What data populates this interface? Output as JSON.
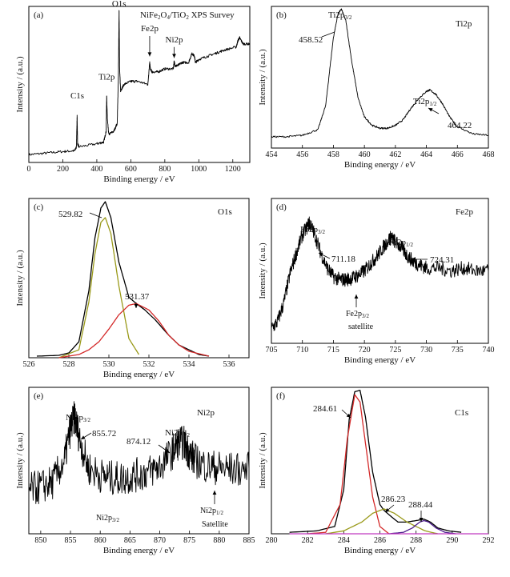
{
  "chart_data": [
    {
      "panel": "(a)",
      "title": "NiFe2O4/TiO2 XPS Survey",
      "title_parts": [
        "NiFe",
        "2",
        "O",
        "4",
        "/TiO",
        "2",
        " XPS Survey"
      ],
      "type": "line",
      "xlabel": "Binding energy / eV",
      "ylabel": "Intensity / (a.u.)",
      "xlim": [
        0,
        1300
      ],
      "ylim": [
        0,
        1
      ],
      "xticks": [
        0,
        200,
        400,
        600,
        800,
        1000,
        1200
      ],
      "series": [
        {
          "color": "#000000",
          "noise": 0.008,
          "x": [
            0,
            100,
            200,
            270,
            280,
            284,
            287,
            295,
            400,
            440,
            455,
            458,
            462,
            470,
            500,
            520,
            527,
            531,
            534,
            540,
            560,
            600,
            640,
            700,
            705,
            711,
            715,
            725,
            760,
            800,
            850,
            855,
            860,
            875,
            900,
            940,
            960,
            975,
            980,
            1000,
            1050,
            1100,
            1150,
            1220,
            1230,
            1240,
            1260,
            1300
          ],
          "y": [
            0.05,
            0.06,
            0.07,
            0.075,
            0.1,
            0.3,
            0.12,
            0.1,
            0.12,
            0.13,
            0.2,
            0.43,
            0.28,
            0.18,
            0.2,
            0.25,
            0.55,
            0.98,
            0.6,
            0.46,
            0.5,
            0.52,
            0.52,
            0.5,
            0.56,
            0.64,
            0.6,
            0.58,
            0.58,
            0.6,
            0.6,
            0.65,
            0.62,
            0.62,
            0.64,
            0.64,
            0.7,
            0.68,
            0.64,
            0.66,
            0.68,
            0.7,
            0.72,
            0.74,
            0.78,
            0.8,
            0.76,
            0.76
          ]
        }
      ],
      "labels": [
        {
          "text": "C1s",
          "x": 285,
          "y": 0.41
        },
        {
          "text": "Ti2p",
          "x": 458,
          "y": 0.53
        },
        {
          "text": "O1s",
          "x": 531,
          "y": 1.0
        },
        {
          "text": "Fe2p",
          "x": 711,
          "y": 0.84
        },
        {
          "text": "Ni2p",
          "x": 855,
          "y": 0.77
        }
      ]
    },
    {
      "panel": "(b)",
      "title": "Ti2p",
      "type": "line",
      "xlabel": "Binding energy / eV",
      "ylabel": "Intensity / (a.u.)",
      "xlim": [
        454,
        468
      ],
      "ylim": [
        0,
        1
      ],
      "xticks": [
        454,
        456,
        458,
        460,
        462,
        464,
        466,
        468
      ],
      "series": [
        {
          "color": "#000000",
          "noise": 0.006,
          "x": [
            454,
            455,
            456,
            457,
            457.5,
            458,
            458.3,
            458.52,
            458.8,
            459.2,
            459.6,
            460,
            460.5,
            461,
            461.5,
            462,
            462.5,
            463,
            463.5,
            464,
            464.22,
            464.6,
            465,
            465.5,
            466,
            467,
            468
          ],
          "y": [
            0.08,
            0.08,
            0.09,
            0.13,
            0.3,
            0.78,
            0.95,
            0.98,
            0.9,
            0.6,
            0.35,
            0.22,
            0.16,
            0.14,
            0.14,
            0.16,
            0.2,
            0.28,
            0.35,
            0.4,
            0.41,
            0.38,
            0.32,
            0.22,
            0.15,
            0.1,
            0.09
          ]
        }
      ],
      "peaks": [
        {
          "name": "Ti2p",
          "sub": "3/2",
          "value": "458.52"
        },
        {
          "name": "Ti2p",
          "sub": "1/2",
          "value": "464.22"
        }
      ]
    },
    {
      "panel": "(c)",
      "title": "O1s",
      "type": "line",
      "xlabel": "Binding energy /  eV",
      "ylabel": "Intensity / (a.u.)",
      "xlim": [
        526,
        537
      ],
      "ylim": [
        0,
        1
      ],
      "xticks": [
        526,
        528,
        530,
        532,
        534,
        536
      ],
      "series": [
        {
          "color": "#000000",
          "x": [
            526.4,
            527.5,
            528,
            528.5,
            529,
            529.3,
            529.6,
            529.82,
            530.1,
            530.5,
            531,
            531.37,
            531.8,
            532.3,
            533,
            533.5,
            534,
            534.5,
            535
          ],
          "y": [
            0.01,
            0.015,
            0.03,
            0.1,
            0.42,
            0.75,
            0.94,
            0.98,
            0.88,
            0.6,
            0.38,
            0.34,
            0.3,
            0.24,
            0.14,
            0.08,
            0.05,
            0.02,
            0.01
          ]
        },
        {
          "color": "#9a9a1a",
          "x": [
            527.5,
            528.5,
            529,
            529.3,
            529.6,
            529.82,
            530.1,
            530.5,
            531,
            531.5
          ],
          "y": [
            0.0,
            0.05,
            0.35,
            0.65,
            0.85,
            0.88,
            0.78,
            0.45,
            0.12,
            0.02
          ]
        },
        {
          "color": "#d42a2a",
          "x": [
            527.5,
            528.5,
            529,
            529.5,
            530,
            530.5,
            531,
            531.37,
            532,
            532.5,
            533,
            533.5,
            534,
            535
          ],
          "y": [
            0.0,
            0.02,
            0.05,
            0.1,
            0.18,
            0.27,
            0.33,
            0.34,
            0.3,
            0.23,
            0.14,
            0.08,
            0.04,
            0.01
          ]
        }
      ],
      "peaks": [
        {
          "value": "529.82"
        },
        {
          "value": "531.37"
        }
      ]
    },
    {
      "panel": "(d)",
      "title": "Fe2p",
      "type": "line",
      "xlabel": "Binding energy / eV",
      "ylabel": "Intensity / (a.u.)",
      "xlim": [
        705,
        740
      ],
      "ylim": [
        0,
        1
      ],
      "xticks": [
        705,
        710,
        715,
        720,
        725,
        730,
        735,
        740
      ],
      "series": [
        {
          "color": "#000000",
          "noise": 0.05,
          "x": [
            705,
            706,
            707,
            708,
            709,
            710,
            711,
            711.18,
            712,
            713,
            714,
            715,
            716,
            717,
            718,
            719,
            720,
            721,
            722,
            723,
            724,
            724.31,
            725,
            726,
            727,
            728,
            729,
            730,
            732,
            734,
            736,
            738,
            740
          ],
          "y": [
            0.1,
            0.15,
            0.28,
            0.48,
            0.62,
            0.75,
            0.82,
            0.83,
            0.75,
            0.62,
            0.52,
            0.46,
            0.44,
            0.44,
            0.45,
            0.47,
            0.5,
            0.55,
            0.6,
            0.66,
            0.72,
            0.73,
            0.7,
            0.66,
            0.6,
            0.56,
            0.54,
            0.52,
            0.52,
            0.5,
            0.52,
            0.5,
            0.5
          ]
        }
      ],
      "peaks": [
        {
          "name": "Fe2p",
          "sub": "3/2",
          "value": "711.18"
        },
        {
          "name": "Fe2p",
          "sub": "1/2",
          "value": "724.31"
        },
        {
          "name": "Fe2p",
          "sub": "3/2",
          "note": "satellite"
        }
      ]
    },
    {
      "panel": "(e)",
      "title": "Ni2p",
      "type": "line",
      "xlabel": "Binding energy / eV",
      "ylabel": "Intensity / (a.u.)",
      "xlim": [
        848,
        885
      ],
      "ylim": [
        0,
        1
      ],
      "xticks": [
        850,
        855,
        860,
        865,
        870,
        875,
        880,
        885
      ],
      "series": [
        {
          "color": "#000000",
          "noise": 0.12,
          "x": [
            848,
            850,
            852,
            854,
            855,
            855.72,
            856.5,
            858,
            860,
            862,
            864,
            866,
            868,
            870,
            872,
            873,
            874.12,
            875,
            876,
            878,
            880,
            882,
            885
          ],
          "y": [
            0.3,
            0.32,
            0.35,
            0.5,
            0.72,
            0.8,
            0.65,
            0.45,
            0.4,
            0.38,
            0.38,
            0.4,
            0.42,
            0.46,
            0.55,
            0.62,
            0.62,
            0.55,
            0.5,
            0.46,
            0.45,
            0.44,
            0.44
          ]
        }
      ],
      "peaks": [
        {
          "name": "Ni2p",
          "sub": "3/2",
          "value": "855.72"
        },
        {
          "name": "Ni2p",
          "sub": "1/2",
          "value": "874.12"
        },
        {
          "name": "Ni2p",
          "sub": "3/2"
        },
        {
          "name": "Ni2p",
          "sub": "1/2",
          "note": "Satellite"
        }
      ]
    },
    {
      "panel": "(f)",
      "title": "C1s",
      "type": "line",
      "xlabel": "Binding energy / eV",
      "ylabel": "Intensity / (a.u.)",
      "xlim": [
        280,
        292
      ],
      "ylim": [
        0,
        1
      ],
      "xticks": [
        280,
        282,
        284,
        286,
        288,
        290,
        292
      ],
      "series": [
        {
          "color": "#000000",
          "x": [
            281,
            282.5,
            283.5,
            284,
            284.3,
            284.61,
            284.9,
            285.2,
            285.6,
            286,
            286.23,
            286.6,
            287,
            287.5,
            288,
            288.44,
            288.8,
            289.2,
            289.8,
            290.5
          ],
          "y": [
            0.01,
            0.02,
            0.05,
            0.3,
            0.78,
            0.97,
            0.98,
            0.8,
            0.42,
            0.2,
            0.16,
            0.12,
            0.08,
            0.08,
            0.09,
            0.1,
            0.08,
            0.04,
            0.02,
            0.01
          ]
        },
        {
          "color": "#d42a2a",
          "x": [
            282,
            283,
            283.8,
            284.2,
            284.61,
            284.9,
            285.2,
            285.6,
            286,
            286.5
          ],
          "y": [
            0.0,
            0.01,
            0.2,
            0.65,
            0.95,
            0.9,
            0.62,
            0.25,
            0.05,
            0.0
          ]
        },
        {
          "color": "#9a9a1a",
          "x": [
            283,
            284,
            285,
            285.6,
            286.23,
            286.8,
            287.5,
            288.5,
            289.2
          ],
          "y": [
            0.0,
            0.02,
            0.08,
            0.14,
            0.17,
            0.14,
            0.08,
            0.02,
            0.0
          ]
        },
        {
          "color": "#4a1a8a",
          "x": [
            286.5,
            287.3,
            287.8,
            288.2,
            288.44,
            288.7,
            289.1,
            289.6,
            290.2
          ],
          "y": [
            0.0,
            0.01,
            0.04,
            0.08,
            0.09,
            0.08,
            0.04,
            0.01,
            0.0
          ]
        },
        {
          "color": "#c03ac0",
          "x": [
            281,
            292
          ],
          "y": [
            0.0,
            0.0
          ]
        }
      ],
      "peaks": [
        {
          "value": "284.61"
        },
        {
          "value": "286.23"
        },
        {
          "value": "288.44"
        }
      ]
    }
  ]
}
